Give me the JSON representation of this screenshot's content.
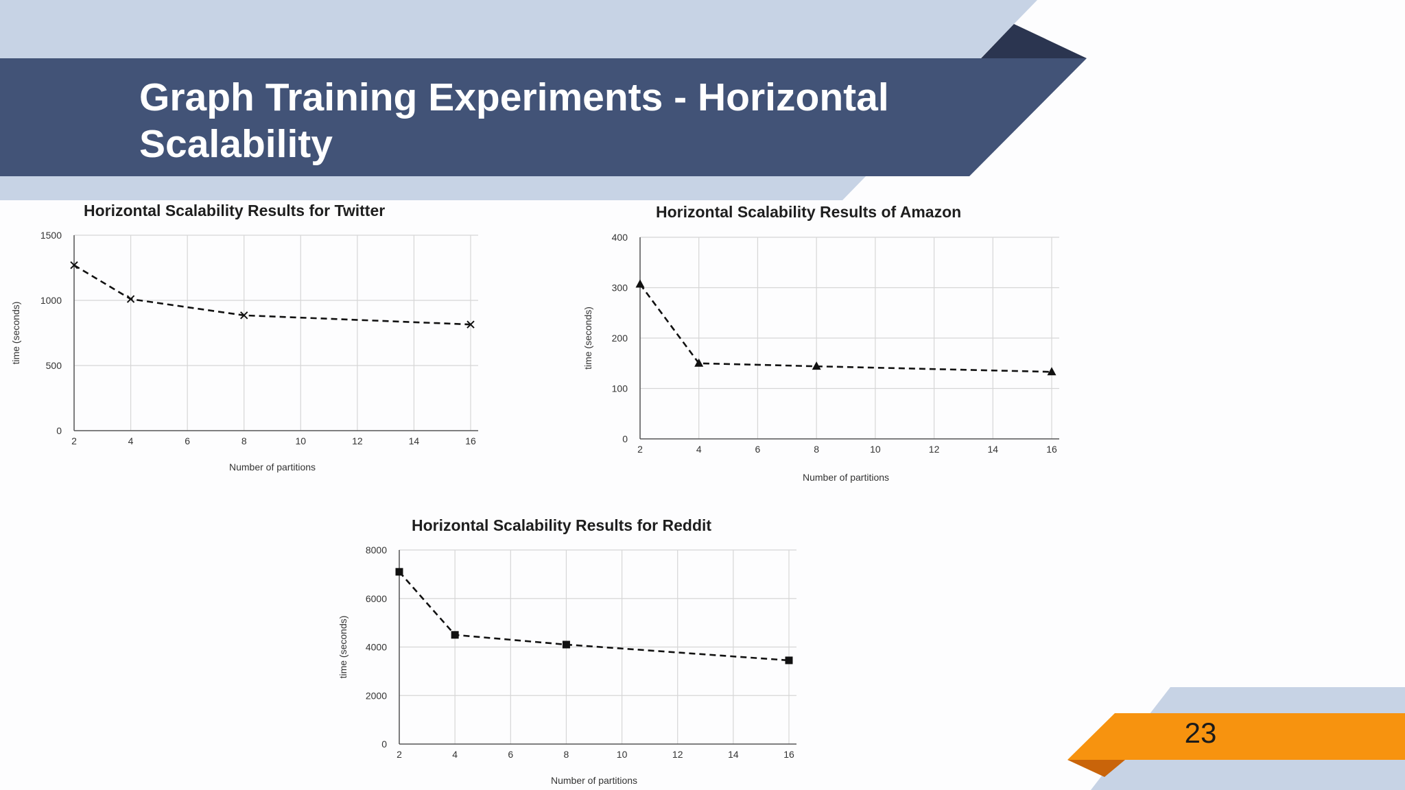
{
  "slide": {
    "title": "Graph Training Experiments - Horizontal Scalability",
    "page_number": "23",
    "colors": {
      "banner": "#425377",
      "banner_light": "#c7d3e5",
      "banner_dark": "#2b3550",
      "accent": "#f7930f",
      "accent_dark": "#c9640a"
    }
  },
  "chart_data": [
    {
      "type": "line",
      "title": "Horizontal Scalability Results for Twitter",
      "xlabel": "Number of partitions",
      "ylabel": "time (seconds)",
      "xticks": [
        2,
        4,
        6,
        8,
        10,
        12,
        14,
        16
      ],
      "yticks": [
        0,
        500,
        1000,
        1500
      ],
      "xlim": [
        2,
        16
      ],
      "ylim": [
        0,
        1500
      ],
      "marker": "x",
      "grid": true,
      "x": [
        2,
        4,
        8,
        16
      ],
      "series": [
        {
          "values": [
            1270,
            1010,
            885,
            815
          ]
        }
      ]
    },
    {
      "type": "line",
      "title": "Horizontal Scalability Results of Amazon",
      "xlabel": "Number  of partitions",
      "ylabel": "time (seconds)",
      "xticks": [
        2,
        4,
        6,
        8,
        10,
        12,
        14,
        16
      ],
      "yticks": [
        0,
        100,
        200,
        300,
        400
      ],
      "xlim": [
        2,
        16
      ],
      "ylim": [
        0,
        400
      ],
      "marker": "triangle",
      "grid": true,
      "x": [
        2,
        4,
        8,
        16
      ],
      "series": [
        {
          "values": [
            307,
            150,
            144,
            133
          ]
        }
      ]
    },
    {
      "type": "line",
      "title": "Horizontal Scalability Results for Reddit",
      "xlabel": "Number of partitions",
      "ylabel": "time (seconds)",
      "xticks": [
        2,
        4,
        6,
        8,
        10,
        12,
        14,
        16
      ],
      "yticks": [
        0,
        2000,
        4000,
        6000,
        8000
      ],
      "xlim": [
        2,
        16
      ],
      "ylim": [
        0,
        8000
      ],
      "marker": "square",
      "grid": true,
      "x": [
        2,
        4,
        8,
        16
      ],
      "series": [
        {
          "values": [
            7100,
            4500,
            4100,
            3450
          ]
        }
      ]
    }
  ]
}
